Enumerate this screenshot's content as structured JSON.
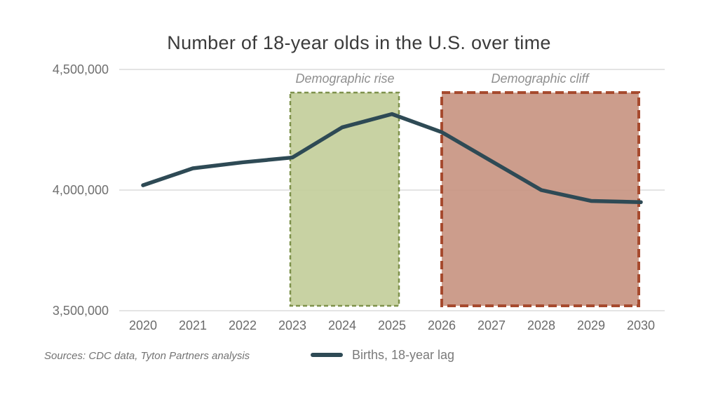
{
  "title": "Number of 18-year olds in the U.S. over time",
  "legend": {
    "label": "Births, 18-year lag"
  },
  "footer": {
    "sources": "Sources: CDC data, Tyton Partners analysis"
  },
  "colors": {
    "line": "#2e4a55",
    "gridline": "#dcdcdc",
    "title_text": "#3b3b3b",
    "tick_text": "#6b6b6b",
    "annotation_text": "#8f8f8f",
    "rise_fill": "#c2cd99",
    "rise_border": "#7e914c",
    "cliff_fill": "#c79280",
    "cliff_border": "#a64a2e"
  },
  "chart_data": {
    "type": "line",
    "title": "Number of 18-year olds in the U.S. over time",
    "x": [
      2020,
      2021,
      2022,
      2023,
      2024,
      2025,
      2026,
      2027,
      2028,
      2029,
      2030
    ],
    "series": [
      {
        "name": "Births, 18-year lag",
        "values": [
          4020000,
          4090000,
          4115000,
          4135000,
          4260000,
          4315000,
          4240000,
          4120000,
          4000000,
          3955000,
          3950000
        ]
      }
    ],
    "xlabel": "",
    "ylabel": "",
    "ylim": [
      3500000,
      4500000
    ],
    "yticks": [
      3500000,
      4000000,
      4500000
    ],
    "ytick_labels": [
      "3,500,000",
      "4,000,000",
      "4,500,000"
    ],
    "grid": "horizontal",
    "legend_position": "bottom-center",
    "regions": [
      {
        "label": "Demographic rise",
        "x_start": 2023,
        "x_end": 2025,
        "style": "dashed-box",
        "fill": "#c2cd99",
        "border": "#7e914c"
      },
      {
        "label": "Demographic cliff",
        "x_start": 2026,
        "x_end": 2030,
        "style": "dashed-box",
        "fill": "#c79280",
        "border": "#a64a2e"
      }
    ]
  }
}
